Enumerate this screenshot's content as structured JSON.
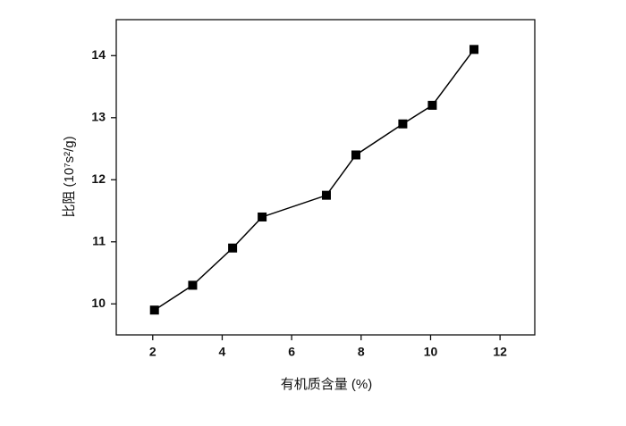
{
  "chart_data": {
    "type": "line",
    "x_label": "有机质含量 (%)",
    "y_label": "比阻 (10⁷s²/g)",
    "x": [
      2.05,
      3.15,
      4.3,
      5.15,
      7.0,
      7.85,
      9.2,
      10.05,
      11.25
    ],
    "series": [
      {
        "color": "#000000",
        "values": [
          9.9,
          10.3,
          10.9,
          11.4,
          11.75,
          12.4,
          12.9,
          13.2,
          14.1
        ]
      }
    ],
    "xlim": [
      0.95,
      13
    ],
    "xticks": [
      2,
      4,
      6,
      8,
      10,
      12
    ],
    "ylim": [
      9.5,
      14.58
    ],
    "yticks": [
      10,
      11,
      12,
      13,
      14
    ],
    "grid": false
  }
}
